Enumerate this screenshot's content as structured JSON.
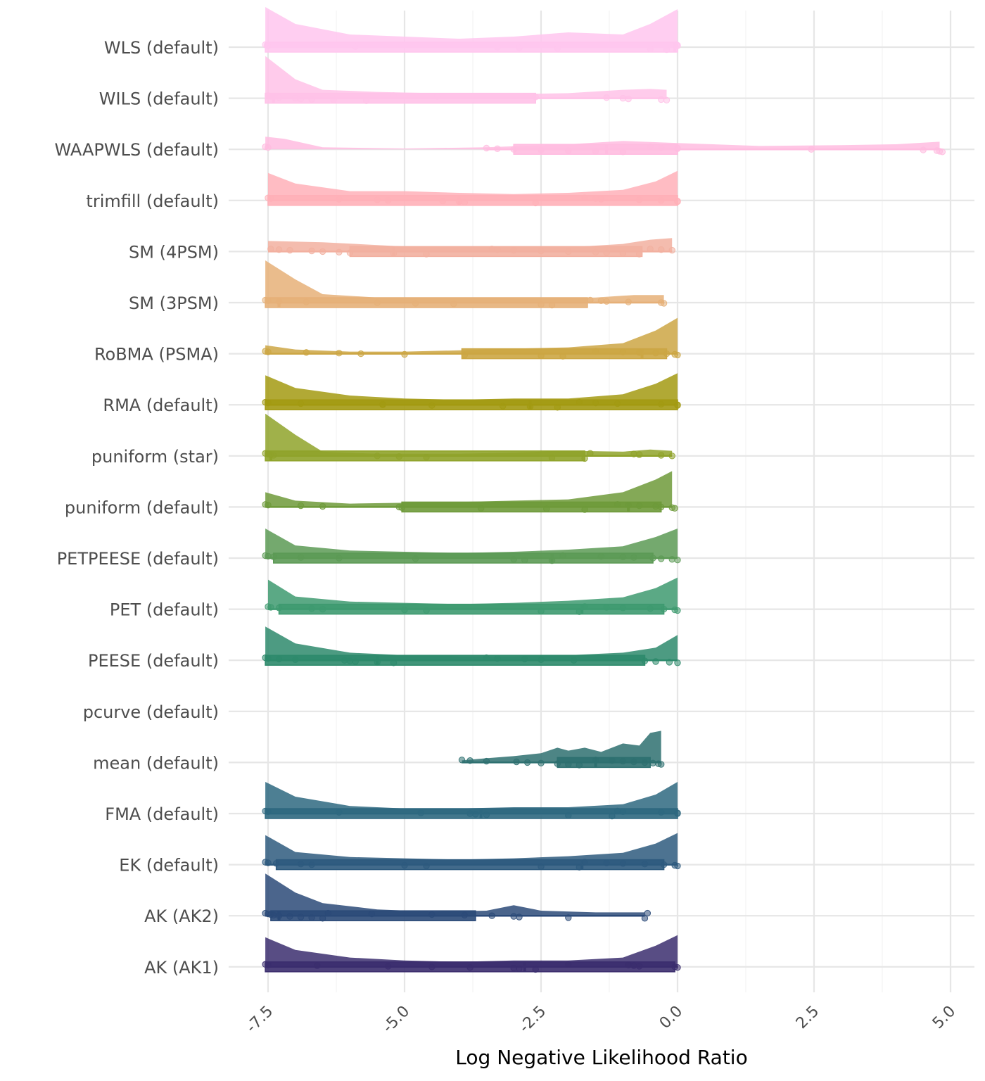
{
  "chart_data": {
    "type": "raincloud",
    "xlabel": "Log Negative Likelihood Ratio",
    "ylabel": "",
    "xlim": [
      -7.8,
      5.4
    ],
    "x_ticks": [
      -7.5,
      -5.0,
      -2.5,
      0.0,
      2.5,
      5.0
    ],
    "x_tick_labels": [
      "-7.5",
      "-5.0",
      "-2.5",
      "0.0",
      "2.5",
      "5.0"
    ],
    "grid": true,
    "categories": [
      "WLS (default)",
      "WILS (default)",
      "WAAPWLS (default)",
      "trimfill (default)",
      "SM (4PSM)",
      "SM (3PSM)",
      "RoBMA (PSMA)",
      "RMA (default)",
      "puniform (star)",
      "puniform (default)",
      "PETPEESE (default)",
      "PET (default)",
      "PEESE (default)",
      "pcurve (default)",
      "mean (default)",
      "FMA (default)",
      "EK (default)",
      "AK (AK2)",
      "AK (AK1)"
    ],
    "series": [
      {
        "name": "WLS (default)",
        "color": "#FFC6EE",
        "min": -7.55,
        "q1": -7.55,
        "median": -0.05,
        "q3": 0.0,
        "max": 0.0,
        "density_x": [
          -7.55,
          -7.0,
          -6.0,
          -5.0,
          -4.0,
          -3.0,
          -2.0,
          -1.0,
          -0.5,
          0.0
        ],
        "density_h": [
          0.95,
          0.55,
          0.3,
          0.25,
          0.2,
          0.25,
          0.35,
          0.3,
          0.55,
          0.9
        ],
        "points": [
          -7.55,
          -7.52,
          -7.5,
          -5.9,
          -3.3,
          -2.9,
          -2.2,
          -0.5,
          -0.2,
          -0.02,
          0.0,
          0.0
        ]
      },
      {
        "name": "WILS (default)",
        "color": "#FFC2E8",
        "min": -7.55,
        "q1": -7.55,
        "median": -7.4,
        "q3": -2.6,
        "max": -0.2,
        "density_x": [
          -7.55,
          -7.0,
          -6.5,
          -5.5,
          -4.5,
          -3.0,
          -2.0,
          -1.0,
          -0.5,
          -0.2
        ],
        "density_h": [
          1.0,
          0.45,
          0.2,
          0.15,
          0.12,
          0.1,
          0.12,
          0.2,
          0.22,
          0.2
        ],
        "points": [
          -7.5,
          -7.45,
          -7.4,
          -7.3,
          -7.0,
          -6.9,
          -6.7,
          -6.3,
          -5.7,
          -5.2,
          -4.4,
          -2.6,
          -1.3,
          -1.0,
          -0.9,
          -0.3,
          -0.2
        ]
      },
      {
        "name": "WAAPWLS (default)",
        "color": "#FFBCE0",
        "min": -3.5,
        "q1": -3.0,
        "median": -1.3,
        "q3": 0.0,
        "max": 4.85,
        "density_x": [
          -7.55,
          -7.2,
          -6.5,
          -5.0,
          -3.5,
          -2.0,
          -1.0,
          0.0,
          1.5,
          3.0,
          4.0,
          4.8
        ],
        "density_h": [
          0.3,
          0.25,
          0.05,
          0.02,
          0.05,
          0.12,
          0.2,
          0.15,
          0.08,
          0.1,
          0.12,
          0.18
        ],
        "points": [
          -7.55,
          -7.5,
          -3.5,
          -3.3,
          -3.0,
          -2.5,
          -2.0,
          -1.5,
          -1.0,
          -0.5,
          -0.3,
          0.0,
          0.0,
          2.45,
          4.5,
          4.75,
          4.8,
          4.85
        ]
      },
      {
        "name": "trimfill (default)",
        "color": "#FFB0B8",
        "min": -7.5,
        "q1": -7.5,
        "median": -4.0,
        "q3": 0.0,
        "max": 0.0,
        "density_x": [
          -7.5,
          -7.0,
          -6.0,
          -5.0,
          -4.0,
          -3.0,
          -2.0,
          -1.0,
          -0.4,
          0.0
        ],
        "density_h": [
          0.65,
          0.4,
          0.22,
          0.22,
          0.18,
          0.15,
          0.18,
          0.25,
          0.45,
          0.7
        ],
        "points": [
          -7.5,
          -7.45,
          -6.2,
          -5.5,
          -5.3,
          -4.3,
          -4.0,
          -3.9,
          -2.6,
          -1.7,
          -1.5,
          -1.4,
          -0.7,
          -0.3,
          0.0,
          0.0
        ]
      },
      {
        "name": "SM (4PSM)",
        "color": "#F2B0A0",
        "min": -7.5,
        "q1": -6.0,
        "median": -5.2,
        "q3": -0.65,
        "max": -0.1,
        "density_x": [
          -7.5,
          -6.5,
          -5.0,
          -3.5,
          -2.0,
          -1.0,
          -0.5,
          -0.1
        ],
        "density_h": [
          0.25,
          0.22,
          0.12,
          0.12,
          0.1,
          0.18,
          0.28,
          0.32
        ],
        "points": [
          -7.45,
          -7.3,
          -7.1,
          -6.7,
          -6.5,
          -6.2,
          -6.0,
          -5.2,
          -4.6,
          -3.4,
          -3.3,
          -3.0,
          -2.5,
          -2.0,
          -1.5,
          -1.3,
          -1.0,
          -0.7,
          -0.5,
          -0.3,
          -0.1
        ]
      },
      {
        "name": "SM (3PSM)",
        "color": "#E6B078",
        "min": -7.55,
        "q1": -7.55,
        "median": -7.3,
        "q3": -1.65,
        "max": -0.25,
        "density_x": [
          -7.55,
          -7.0,
          -6.5,
          -5.5,
          -4.0,
          -2.5,
          -1.5,
          -0.8,
          -0.25
        ],
        "density_h": [
          1.0,
          0.55,
          0.2,
          0.12,
          0.12,
          0.1,
          0.12,
          0.18,
          0.18
        ],
        "points": [
          -7.55,
          -7.5,
          -7.3,
          -6.8,
          -5.5,
          -4.8,
          -4.1,
          -2.5,
          -2.3,
          -1.6,
          -1.4,
          -1.3,
          -0.9,
          -0.3,
          -0.25
        ]
      },
      {
        "name": "RoBMA (PSMA)",
        "color": "#CCA644",
        "min": -7.55,
        "q1": -3.95,
        "median": -0.65,
        "q3": -0.2,
        "max": 0.0,
        "density_x": [
          -7.55,
          -7.0,
          -6.0,
          -5.0,
          -4.0,
          -3.0,
          -2.0,
          -1.0,
          -0.4,
          0.0
        ],
        "density_h": [
          0.2,
          0.1,
          0.05,
          0.05,
          0.08,
          0.12,
          0.15,
          0.25,
          0.55,
          0.85
        ],
        "points": [
          -7.55,
          -7.5,
          -6.8,
          -6.2,
          -5.8,
          -5.0,
          -3.9,
          -2.5,
          -2.1,
          -1.5,
          -1.0,
          -0.7,
          -0.4,
          -0.2,
          -0.05,
          0.0
        ]
      },
      {
        "name": "RMA (default)",
        "color": "#A39A12",
        "min": -7.55,
        "q1": -7.55,
        "median": -2.7,
        "q3": 0.0,
        "max": 0.0,
        "density_x": [
          -7.55,
          -7.0,
          -6.0,
          -5.0,
          -4.0,
          -3.0,
          -2.0,
          -1.0,
          -0.4,
          0.0
        ],
        "density_h": [
          0.7,
          0.4,
          0.22,
          0.15,
          0.12,
          0.15,
          0.15,
          0.25,
          0.5,
          0.75
        ],
        "points": [
          -7.55,
          -7.5,
          -6.9,
          -5.4,
          -5.4,
          -4.5,
          -3.2,
          -2.7,
          -2.2,
          -1.8,
          -1.5,
          -1.1,
          -0.3,
          0.0,
          0.0
        ]
      },
      {
        "name": "puniform (star)",
        "color": "#8FA32A",
        "min": -7.55,
        "q1": -7.55,
        "median": -7.45,
        "q3": -1.7,
        "max": -0.1,
        "density_x": [
          -7.55,
          -7.0,
          -6.5,
          -5.5,
          -4.0,
          -3.0,
          -2.0,
          -1.0,
          -0.5,
          -0.1
        ],
        "density_h": [
          1.0,
          0.5,
          0.1,
          0.05,
          0.05,
          0.08,
          0.12,
          0.1,
          0.15,
          0.12
        ],
        "points": [
          -7.55,
          -7.5,
          -7.45,
          -7.4,
          -5.5,
          -5.1,
          -4.6,
          -2.3,
          -1.7,
          -1.6,
          -0.8,
          -0.7,
          -0.3,
          -0.1
        ]
      },
      {
        "name": "puniform (default)",
        "color": "#6E9A3A",
        "min": -7.55,
        "q1": -5.05,
        "median": -0.9,
        "q3": -0.3,
        "max": -0.1,
        "density_x": [
          -7.55,
          -7.0,
          -6.0,
          -5.0,
          -4.0,
          -3.0,
          -2.0,
          -1.0,
          -0.4,
          -0.1
        ],
        "density_h": [
          0.35,
          0.15,
          0.08,
          0.1,
          0.12,
          0.15,
          0.18,
          0.35,
          0.65,
          0.85
        ],
        "points": [
          -7.55,
          -7.5,
          -6.9,
          -6.5,
          -5.1,
          -5.05,
          -3.6,
          -2.4,
          -1.7,
          -1.1,
          -0.9,
          -0.7,
          -0.4,
          -0.3,
          -0.1,
          -0.05
        ]
      },
      {
        "name": "PETPEESE (default)",
        "color": "#5C9A55",
        "min": -7.55,
        "q1": -7.4,
        "median": -2.3,
        "q3": -0.45,
        "max": 0.0,
        "density_x": [
          -7.55,
          -7.0,
          -6.0,
          -5.0,
          -4.0,
          -3.0,
          -2.0,
          -1.0,
          -0.4,
          0.0
        ],
        "density_h": [
          0.7,
          0.3,
          0.18,
          0.15,
          0.12,
          0.15,
          0.2,
          0.28,
          0.5,
          0.7
        ],
        "points": [
          -7.55,
          -7.5,
          -7.4,
          -6.9,
          -6.2,
          -4.8,
          -3.0,
          -2.8,
          -2.3,
          -2.1,
          -1.4,
          -1.0,
          -0.8,
          -0.45,
          -0.3,
          -0.1,
          0.0
        ]
      },
      {
        "name": "PET (default)",
        "color": "#3E9A70",
        "min": -7.5,
        "q1": -7.3,
        "median": -1.75,
        "q3": -0.25,
        "max": 0.0,
        "density_x": [
          -7.5,
          -7.0,
          -6.0,
          -5.0,
          -4.0,
          -3.0,
          -2.0,
          -1.0,
          -0.4,
          0.0
        ],
        "density_h": [
          0.7,
          0.3,
          0.18,
          0.15,
          0.12,
          0.15,
          0.2,
          0.28,
          0.5,
          0.75
        ],
        "points": [
          -7.5,
          -7.45,
          -7.3,
          -6.7,
          -6.5,
          -5.0,
          -4.6,
          -2.5,
          -1.8,
          -1.7,
          -1.3,
          -1.0,
          -0.5,
          -0.25,
          -0.05,
          0.0
        ]
      },
      {
        "name": "PEESE (default)",
        "color": "#2E8A6C",
        "min": -7.55,
        "q1": -7.55,
        "median": -5.5,
        "q3": -0.6,
        "max": 0.0,
        "density_x": [
          -7.55,
          -7.0,
          -6.0,
          -5.0,
          -4.0,
          -3.0,
          -2.0,
          -1.0,
          -0.4,
          0.0
        ],
        "density_h": [
          0.8,
          0.4,
          0.18,
          0.12,
          0.1,
          0.1,
          0.12,
          0.18,
          0.3,
          0.6
        ],
        "points": [
          -7.55,
          -7.5,
          -7.3,
          -7.0,
          -6.1,
          -6.0,
          -5.9,
          -5.5,
          -5.2,
          -3.5,
          -3.3,
          -2.8,
          -2.5,
          -1.9,
          -0.6,
          -0.4,
          -0.15,
          0.0
        ]
      },
      {
        "name": "pcurve (default)",
        "color": "#2A7A7A",
        "points": []
      },
      {
        "name": "mean (default)",
        "color": "#2E7070",
        "min": -3.95,
        "q1": -2.2,
        "median": -1.5,
        "q3": -0.5,
        "max": -0.3,
        "density_x": [
          -3.95,
          -3.5,
          -3.0,
          -2.5,
          -2.2,
          -2.0,
          -1.7,
          -1.4,
          -1.0,
          -0.7,
          -0.5,
          -0.3
        ],
        "density_h": [
          0.05,
          0.1,
          0.15,
          0.22,
          0.35,
          0.28,
          0.35,
          0.25,
          0.45,
          0.4,
          0.7,
          0.75
        ],
        "points": [
          -3.95,
          -3.8,
          -3.5,
          -2.95,
          -2.75,
          -2.5,
          -2.2,
          -2.0,
          -1.8,
          -1.5,
          -1.2,
          -1.0,
          -0.8,
          -0.6,
          -0.45,
          -0.35,
          -0.3
        ]
      },
      {
        "name": "FMA (default)",
        "color": "#2E6880",
        "min": -7.55,
        "q1": -7.55,
        "median": -3.6,
        "q3": 0.0,
        "max": 0.0,
        "density_x": [
          -7.55,
          -7.0,
          -6.0,
          -5.0,
          -4.0,
          -3.0,
          -2.0,
          -1.0,
          -0.4,
          0.0
        ],
        "density_h": [
          0.75,
          0.4,
          0.18,
          0.12,
          0.12,
          0.15,
          0.15,
          0.22,
          0.45,
          0.75
        ],
        "points": [
          -7.55,
          -7.5,
          -6.2,
          -4.7,
          -3.8,
          -3.7,
          -3.5,
          -2.0,
          -1.2,
          -1.1,
          -1.0,
          -0.3,
          0.0,
          0.0
        ]
      },
      {
        "name": "EK (default)",
        "color": "#2E5A7E",
        "min": -7.55,
        "q1": -7.35,
        "median": -1.75,
        "q3": -0.25,
        "max": 0.0,
        "density_x": [
          -7.55,
          -7.0,
          -6.0,
          -5.0,
          -4.0,
          -3.0,
          -2.0,
          -1.0,
          -0.4,
          0.0
        ],
        "density_h": [
          0.7,
          0.3,
          0.18,
          0.15,
          0.12,
          0.15,
          0.2,
          0.28,
          0.5,
          0.75
        ],
        "points": [
          -7.55,
          -7.5,
          -7.35,
          -6.9,
          -6.7,
          -5.0,
          -4.6,
          -2.5,
          -1.8,
          -1.7,
          -1.3,
          -1.0,
          -0.6,
          -0.25,
          -0.05,
          0.0
        ]
      },
      {
        "name": "AK (AK2)",
        "color": "#2B4A78",
        "min": -7.55,
        "q1": -7.45,
        "median": -7.3,
        "q3": -3.7,
        "max": -0.6,
        "density_x": [
          -7.55,
          -7.0,
          -6.5,
          -5.5,
          -4.5,
          -3.5,
          -3.0,
          -2.5,
          -1.5,
          -0.6
        ],
        "density_h": [
          1.0,
          0.55,
          0.3,
          0.15,
          0.1,
          0.12,
          0.25,
          0.12,
          0.08,
          0.08
        ],
        "points": [
          -7.55,
          -7.5,
          -7.45,
          -7.4,
          -7.3,
          -7.1,
          -6.9,
          -6.7,
          -6.5,
          -6.4,
          -5.6,
          -4.5,
          -3.9,
          -3.4,
          -3.0,
          -2.9,
          -2.0,
          -0.6,
          -0.55
        ]
      },
      {
        "name": "AK (AK1)",
        "color": "#3B2E6E",
        "min": -7.55,
        "q1": -7.55,
        "median": -2.8,
        "q3": -0.05,
        "max": 0.0,
        "density_x": [
          -7.55,
          -7.0,
          -6.0,
          -5.0,
          -4.0,
          -3.0,
          -2.0,
          -1.0,
          -0.4,
          0.0
        ],
        "density_h": [
          0.7,
          0.4,
          0.22,
          0.15,
          0.12,
          0.15,
          0.15,
          0.22,
          0.5,
          0.75
        ],
        "points": [
          -7.55,
          -7.5,
          -6.6,
          -5.3,
          -4.5,
          -3.8,
          -3.0,
          -2.9,
          -2.6,
          -2.0,
          -0.9,
          -0.8,
          -0.7,
          -0.05,
          0.0
        ]
      }
    ]
  }
}
